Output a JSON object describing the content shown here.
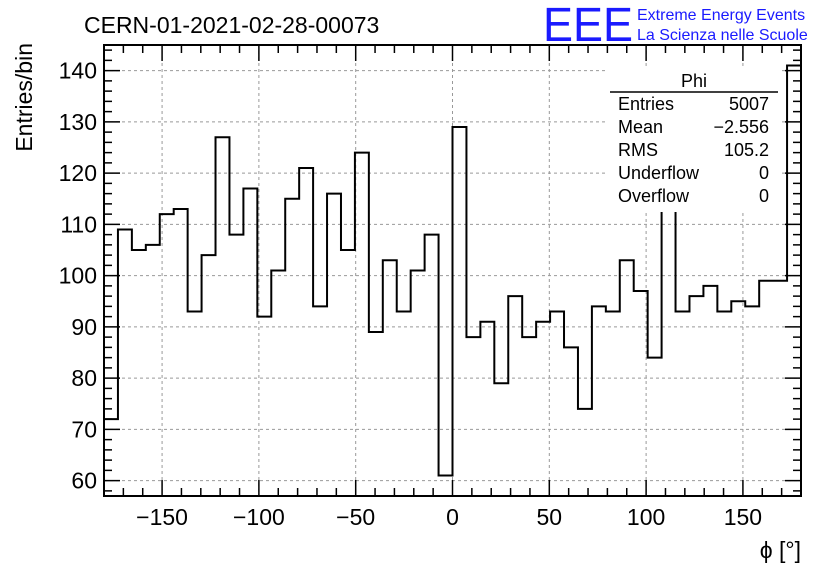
{
  "chart_data": {
    "type": "bar",
    "style": "step-histogram",
    "title": "CERN-01-2021-02-28-00073",
    "xlabel": "ϕ [°]",
    "ylabel": "Entries/bin",
    "xlim": [
      -180,
      180
    ],
    "ylim": [
      57,
      145
    ],
    "grid": true,
    "bin_width": 7.2,
    "x": [
      -176.4,
      -169.2,
      -162.0,
      -154.8,
      -147.6,
      -140.4,
      -133.2,
      -126.0,
      -118.8,
      -111.6,
      -104.4,
      -97.2,
      -90.0,
      -82.8,
      -75.6,
      -68.4,
      -61.2,
      -54.0,
      -46.8,
      -39.6,
      -32.4,
      -25.2,
      -18.0,
      -10.8,
      -3.6,
      3.6,
      10.8,
      18.0,
      25.2,
      32.4,
      39.6,
      46.8,
      54.0,
      61.2,
      68.4,
      75.6,
      82.8,
      90.0,
      97.2,
      104.4,
      111.6,
      118.8,
      126.0,
      133.2,
      140.4,
      147.6,
      154.8,
      162.0,
      169.2,
      176.4
    ],
    "values": [
      72,
      109,
      105,
      106,
      112,
      113,
      93,
      104,
      127,
      108,
      117,
      92,
      101,
      115,
      121,
      94,
      116,
      105,
      124,
      89,
      103,
      93,
      101,
      108,
      61,
      129,
      88,
      91,
      79,
      96,
      88,
      91,
      93,
      86,
      74,
      94,
      93,
      103,
      97,
      84,
      124,
      93,
      96,
      98,
      93,
      95,
      94,
      99,
      99,
      141
    ],
    "x_ticks": [
      -150,
      -100,
      -50,
      0,
      50,
      100,
      150
    ],
    "x_tick_labels": [
      "−150",
      "−100",
      "−50",
      "0",
      "50",
      "100",
      "150"
    ],
    "y_ticks": [
      60,
      70,
      80,
      90,
      100,
      110,
      120,
      130,
      140
    ],
    "y_tick_labels": [
      "60",
      "70",
      "80",
      "90",
      "100",
      "110",
      "120",
      "130",
      "140"
    ],
    "legend": "top-right",
    "stats": {
      "name": "Phi",
      "rows": [
        {
          "label": "Entries",
          "value": "5007"
        },
        {
          "label": "Mean",
          "value": "−2.556"
        },
        {
          "label": "RMS",
          "value": "105.2"
        },
        {
          "label": "Underflow",
          "value": "0"
        },
        {
          "label": "Overflow",
          "value": "0"
        }
      ]
    },
    "logo": {
      "mark": "EEE",
      "line1": "Extreme Energy Events",
      "line2": "La Scienza nelle Scuole",
      "color": "#1a1aff"
    }
  }
}
